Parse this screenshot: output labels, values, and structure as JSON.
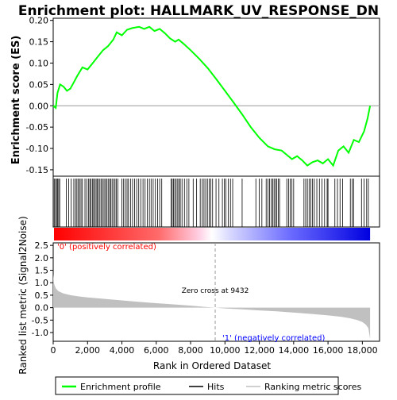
{
  "chart_data": {
    "type": "line",
    "title": "Enrichment plot: HALLMARK_UV_RESPONSE_DN",
    "panels": {
      "es": {
        "ylabel": "Enrichment score (ES)",
        "ylim": [
          -0.165,
          0.205
        ],
        "yticks": [
          -0.15,
          -0.1,
          -0.05,
          0.0,
          0.05,
          0.1,
          0.15,
          0.2
        ],
        "ytick_labels": [
          "-0.15",
          "-0.10",
          "-0.05",
          "0.00",
          "0.05",
          "0.10",
          "0.15",
          "0.20"
        ],
        "grid": false,
        "series": [
          {
            "name": "Enrichment profile",
            "color": "#00ff00",
            "x": [
              0,
              150,
              250,
              400,
              600,
              800,
              1000,
              1200,
              1400,
              1700,
              2000,
              2300,
              2600,
              2900,
              3200,
              3500,
              3700,
              4000,
              4300,
              4600,
              5000,
              5300,
              5600,
              5900,
              6200,
              6500,
              6800,
              7100,
              7300,
              7600,
              8000,
              8500,
              9000,
              9500,
              10000,
              10500,
              11000,
              11500,
              12000,
              12500,
              12900,
              13300,
              13600,
              13900,
              14200,
              14500,
              14800,
              15100,
              15400,
              15700,
              16000,
              16300,
              16600,
              16900,
              17200,
              17500,
              17800,
              18100,
              18300,
              18450
            ],
            "y": [
              0.0,
              -0.005,
              0.03,
              0.05,
              0.045,
              0.035,
              0.04,
              0.055,
              0.07,
              0.09,
              0.085,
              0.1,
              0.115,
              0.13,
              0.14,
              0.155,
              0.172,
              0.165,
              0.178,
              0.182,
              0.185,
              0.18,
              0.185,
              0.175,
              0.18,
              0.17,
              0.158,
              0.15,
              0.155,
              0.145,
              0.13,
              0.11,
              0.088,
              0.062,
              0.035,
              0.008,
              -0.02,
              -0.05,
              -0.075,
              -0.095,
              -0.102,
              -0.105,
              -0.115,
              -0.125,
              -0.118,
              -0.128,
              -0.14,
              -0.132,
              -0.128,
              -0.135,
              -0.125,
              -0.14,
              -0.105,
              -0.095,
              -0.11,
              -0.08,
              -0.085,
              -0.06,
              -0.03,
              0.0
            ]
          }
        ]
      },
      "hits": {
        "name": "Hits",
        "positions": [
          60,
          130,
          200,
          260,
          320,
          380,
          760,
          900,
          1050,
          1200,
          1300,
          1380,
          1460,
          1540,
          1620,
          1700,
          1850,
          1950,
          2050,
          2130,
          2200,
          2280,
          2350,
          2420,
          2500,
          2570,
          2640,
          2720,
          2800,
          2880,
          2960,
          3040,
          3120,
          3200,
          3280,
          3350,
          3430,
          3520,
          3600,
          3680,
          3760,
          4000,
          4100,
          4200,
          4300,
          4380,
          4500,
          4620,
          4740,
          4860,
          4980,
          5100,
          5230,
          5350,
          5480,
          5600,
          5700,
          5820,
          5950,
          6080,
          6200,
          6320,
          6860,
          6930,
          7000,
          7080,
          7160,
          7250,
          7330,
          7400,
          7500,
          7640,
          7780,
          7900,
          8150,
          8350,
          8560,
          8680,
          8780,
          8880,
          8980,
          9080,
          9180,
          9280,
          9480,
          9650,
          9850,
          9960,
          10050,
          10200,
          10320,
          10450,
          11000,
          11800,
          12000,
          12150,
          12400,
          12500,
          12600,
          12700,
          12780,
          12860,
          12940,
          13020,
          13100,
          13180,
          13600,
          13700,
          13800,
          13900,
          14000,
          14600,
          14700,
          14800,
          14900,
          15000,
          15100,
          15200,
          15350,
          15500,
          15650,
          15800,
          15950,
          16000,
          16400,
          16550,
          16700,
          16850,
          17300,
          17400,
          17500,
          17950,
          18100,
          18250,
          18350
        ]
      },
      "metric": {
        "ylabel": "Ranked list metric (Signal2Noise)",
        "xlabel": "Rank in Ordered Dataset",
        "ylim": [
          -1.35,
          2.6
        ],
        "yticks": [
          -1.0,
          -0.5,
          0.0,
          0.5,
          1.0,
          1.5,
          2.0,
          2.5
        ],
        "ytick_labels": [
          "-1.0",
          "-0.5",
          "0.0",
          "0.5",
          "1.0",
          "1.5",
          "2.0",
          "2.5"
        ],
        "xlim": [
          0,
          19000
        ],
        "xticks": [
          0,
          2000,
          4000,
          6000,
          8000,
          10000,
          12000,
          14000,
          16000,
          18000
        ],
        "xtick_labels": [
          "0",
          "2,000",
          "4,000",
          "6,000",
          "8,000",
          "10,000",
          "12,000",
          "14,000",
          "16,000",
          "18,000"
        ],
        "x": [
          0,
          50,
          150,
          300,
          600,
          1000,
          1500,
          2000,
          3000,
          4000,
          5000,
          6000,
          7000,
          8000,
          9000,
          9432,
          10000,
          11000,
          12000,
          13000,
          14000,
          15000,
          16000,
          16800,
          17300,
          17700,
          18000,
          18200,
          18350,
          18450
        ],
        "values": [
          1.35,
          0.95,
          0.78,
          0.66,
          0.57,
          0.5,
          0.45,
          0.41,
          0.35,
          0.29,
          0.23,
          0.18,
          0.13,
          0.08,
          0.02,
          0.0,
          -0.03,
          -0.07,
          -0.11,
          -0.15,
          -0.2,
          -0.25,
          -0.31,
          -0.37,
          -0.43,
          -0.5,
          -0.58,
          -0.68,
          -0.82,
          -1.25
        ],
        "zero_cross": 9432,
        "zero_cross_label": "Zero cross at 9432",
        "pos_label": "'0' (positively correlated)",
        "neg_label": "'1' (negatively correlated)"
      }
    },
    "legend": {
      "placement": "bottom",
      "entries": [
        {
          "label": "Enrichment profile",
          "color": "#00ff00"
        },
        {
          "label": "Hits",
          "color": "#000000"
        },
        {
          "label": "Ranking metric scores",
          "color": "#c0c0c0"
        }
      ]
    },
    "colors": {
      "profile": "#00ff00",
      "positive": "#ff0000",
      "negative": "#0000ff",
      "pos_label": "#ff0000",
      "neg_label": "#0000ff",
      "metric_fill": "#c0c0c0"
    }
  }
}
